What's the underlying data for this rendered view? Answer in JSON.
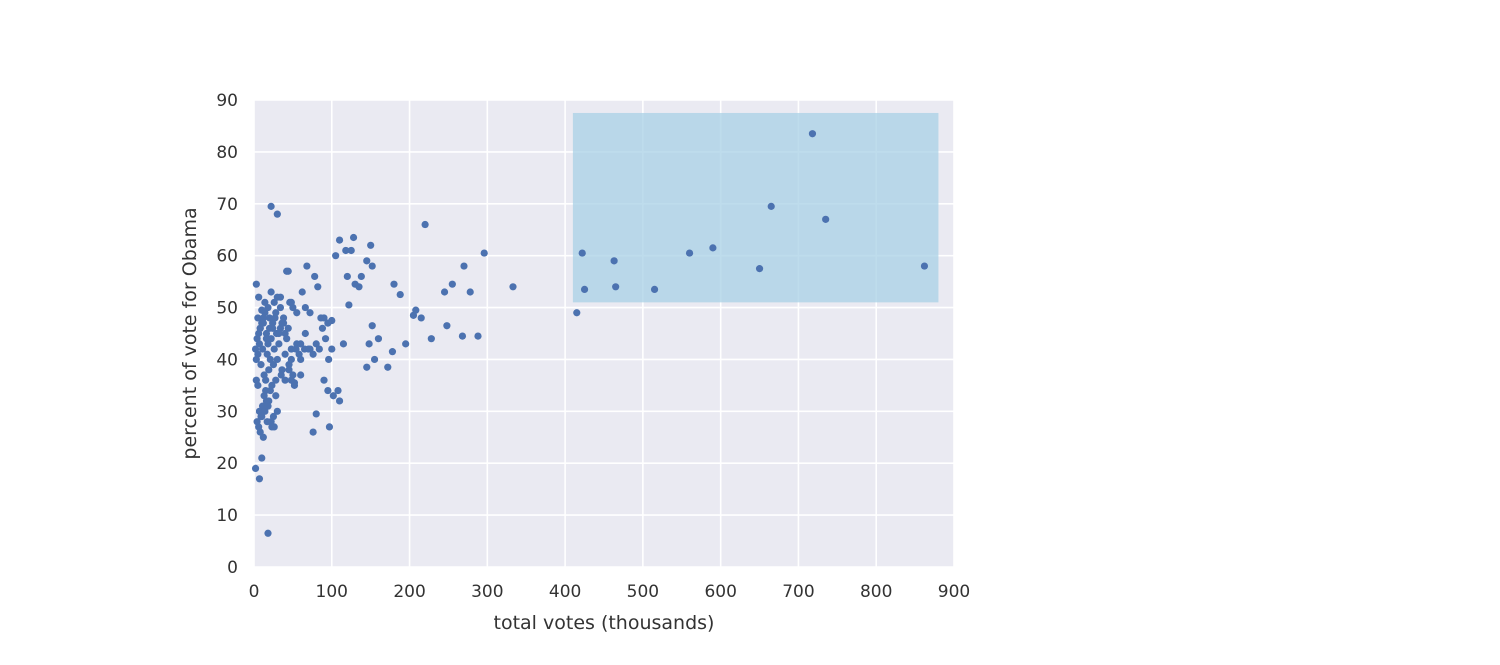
{
  "chart_data": {
    "type": "scatter",
    "title": "",
    "xlabel": "total votes (thousands)",
    "ylabel": "percent of vote for Obama",
    "xlim": [
      0,
      900
    ],
    "ylim": [
      0,
      90
    ],
    "xticks": [
      "0",
      "100",
      "200",
      "300",
      "400",
      "500",
      "600",
      "700",
      "800",
      "900"
    ],
    "yticks": [
      "0",
      "10",
      "20",
      "30",
      "40",
      "50",
      "60",
      "70",
      "80",
      "90"
    ],
    "grid": true,
    "colors": {
      "background": "#eaeaf2",
      "grid": "#ffffff",
      "point": "#4c72b0",
      "highlight": "#a8d0e6"
    },
    "highlight_region": {
      "x": [
        410,
        880
      ],
      "y": [
        51,
        87.5
      ]
    },
    "series": [
      {
        "points": [
          [
            2,
            42
          ],
          [
            3,
            40
          ],
          [
            4,
            44
          ],
          [
            5,
            41
          ],
          [
            6,
            45
          ],
          [
            7,
            43
          ],
          [
            8,
            46
          ],
          [
            9,
            39
          ],
          [
            10,
            47
          ],
          [
            11,
            42
          ],
          [
            12,
            48
          ],
          [
            13,
            37
          ],
          [
            14,
            49
          ],
          [
            15,
            36
          ],
          [
            16,
            45
          ],
          [
            17,
            41
          ],
          [
            18,
            43
          ],
          [
            19,
            38
          ],
          [
            20,
            46
          ],
          [
            21,
            40
          ],
          [
            22,
            44
          ],
          [
            23,
            35
          ],
          [
            24,
            47
          ],
          [
            25,
            39
          ],
          [
            26,
            42
          ],
          [
            27,
            48
          ],
          [
            28,
            36
          ],
          [
            29,
            45
          ],
          [
            30,
            40
          ],
          [
            32,
            43
          ],
          [
            34,
            46
          ],
          [
            36,
            38
          ],
          [
            38,
            47
          ],
          [
            40,
            41
          ],
          [
            42,
            44
          ],
          [
            45,
            39
          ],
          [
            48,
            42
          ],
          [
            50,
            37
          ],
          [
            55,
            43
          ],
          [
            60,
            40
          ],
          [
            3,
            36
          ],
          [
            5,
            35
          ],
          [
            7,
            30
          ],
          [
            9,
            29
          ],
          [
            11,
            31
          ],
          [
            13,
            33
          ],
          [
            15,
            34
          ],
          [
            17,
            28
          ],
          [
            19,
            32
          ],
          [
            21,
            34
          ],
          [
            23,
            27
          ],
          [
            25,
            29
          ],
          [
            28,
            33
          ],
          [
            30,
            30
          ],
          [
            35,
            37
          ],
          [
            40,
            36
          ],
          [
            45,
            38
          ],
          [
            52,
            35
          ],
          [
            58,
            41
          ],
          [
            65,
            42
          ],
          [
            4,
            28
          ],
          [
            6,
            27
          ],
          [
            8,
            26
          ],
          [
            10,
            29
          ],
          [
            12,
            25
          ],
          [
            14,
            30
          ],
          [
            16,
            32
          ],
          [
            18,
            31
          ],
          [
            22,
            28
          ],
          [
            26,
            27
          ],
          [
            3,
            54.5
          ],
          [
            6,
            52
          ],
          [
            10,
            49.5
          ],
          [
            14,
            51
          ],
          [
            18,
            50
          ],
          [
            22,
            53
          ],
          [
            26,
            51
          ],
          [
            30,
            52
          ],
          [
            34,
            50
          ],
          [
            38,
            48
          ],
          [
            42,
            57
          ],
          [
            46,
            51
          ],
          [
            50,
            50
          ],
          [
            55,
            49
          ],
          [
            62,
            53
          ],
          [
            68,
            58
          ],
          [
            72,
            49
          ],
          [
            78,
            56
          ],
          [
            82,
            54
          ],
          [
            90,
            48
          ],
          [
            95,
            47
          ],
          [
            100,
            47.5
          ],
          [
            5,
            48
          ],
          [
            8,
            46
          ],
          [
            12,
            47
          ],
          [
            16,
            44
          ],
          [
            20,
            48
          ],
          [
            24,
            46
          ],
          [
            28,
            49
          ],
          [
            32,
            45
          ],
          [
            36,
            47
          ],
          [
            40,
            45
          ],
          [
            44,
            46
          ],
          [
            48,
            40
          ],
          [
            54,
            42
          ],
          [
            60,
            43
          ],
          [
            66,
            45
          ],
          [
            72,
            42
          ],
          [
            80,
            43
          ],
          [
            88,
            46
          ],
          [
            92,
            44
          ],
          [
            96,
            40
          ],
          [
            100,
            42
          ],
          [
            115,
            43
          ],
          [
            2,
            19
          ],
          [
            7,
            17
          ],
          [
            10,
            21
          ],
          [
            18,
            6.5
          ],
          [
            22,
            69.5
          ],
          [
            30,
            68
          ],
          [
            34,
            52
          ],
          [
            44,
            57
          ],
          [
            48,
            51
          ],
          [
            66,
            50
          ],
          [
            70,
            42
          ],
          [
            76,
            41
          ],
          [
            84,
            42
          ],
          [
            86,
            48
          ],
          [
            90,
            36
          ],
          [
            95,
            34
          ],
          [
            97,
            27
          ],
          [
            102,
            33
          ],
          [
            108,
            34
          ],
          [
            110,
            32
          ],
          [
            76,
            26
          ],
          [
            80,
            29.5
          ],
          [
            60,
            37
          ],
          [
            52,
            35.5
          ],
          [
            48,
            36
          ],
          [
            105,
            60
          ],
          [
            110,
            63
          ],
          [
            118,
            61
          ],
          [
            120,
            56
          ],
          [
            125,
            61
          ],
          [
            128,
            63.5
          ],
          [
            130,
            54.5
          ],
          [
            135,
            54
          ],
          [
            138,
            56
          ],
          [
            145,
            59
          ],
          [
            150,
            62
          ],
          [
            152,
            58
          ],
          [
            122,
            50.5
          ],
          [
            152,
            46.5
          ],
          [
            148,
            43
          ],
          [
            145,
            38.5
          ],
          [
            155,
            40
          ],
          [
            160,
            44
          ],
          [
            172,
            38.5
          ],
          [
            178,
            41.5
          ],
          [
            180,
            54.5
          ],
          [
            188,
            52.5
          ],
          [
            195,
            43
          ],
          [
            205,
            48.5
          ],
          [
            208,
            49.5
          ],
          [
            215,
            48
          ],
          [
            220,
            66
          ],
          [
            228,
            44
          ],
          [
            245,
            53
          ],
          [
            248,
            46.5
          ],
          [
            255,
            54.5
          ],
          [
            268,
            44.5
          ],
          [
            270,
            58
          ],
          [
            278,
            53
          ],
          [
            288,
            44.5
          ],
          [
            296,
            60.5
          ],
          [
            333,
            54
          ],
          [
            415,
            49
          ],
          [
            422,
            60.5
          ],
          [
            425,
            53.5
          ],
          [
            463,
            59
          ],
          [
            465,
            54
          ],
          [
            515,
            53.5
          ],
          [
            560,
            60.5
          ],
          [
            590,
            61.5
          ],
          [
            650,
            57.5
          ],
          [
            665,
            69.5
          ],
          [
            718,
            83.5
          ],
          [
            735,
            67
          ],
          [
            862,
            58
          ]
        ]
      }
    ]
  }
}
